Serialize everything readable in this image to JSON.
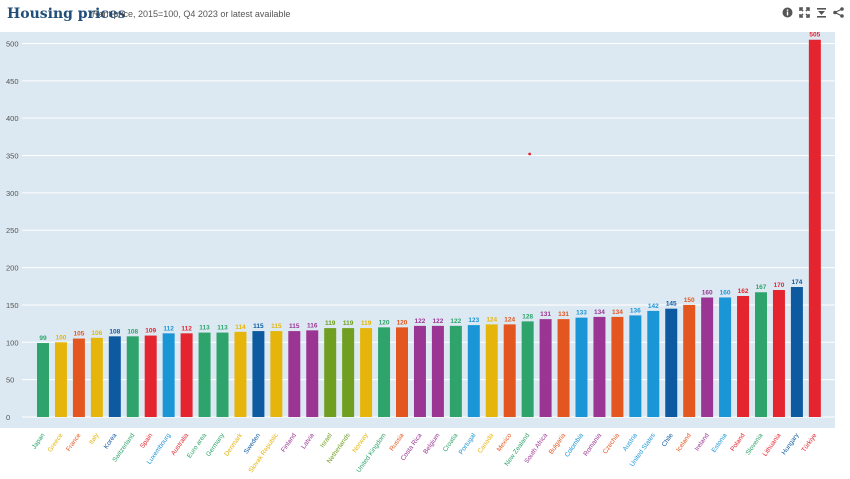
{
  "header": {
    "title": "Housing prices",
    "subtitle": "Rent price, 2015=100, Q4 2023 or latest available"
  },
  "tools": [
    {
      "name": "info-icon"
    },
    {
      "name": "fullscreen-icon"
    },
    {
      "name": "download-icon"
    },
    {
      "name": "share-icon"
    }
  ],
  "colors": {
    "plot_bg": "#dde9f2",
    "grid": "#ffffff",
    "palette": [
      "#2ea36b",
      "#e5b50c",
      "#e4561f",
      "#1a95d6",
      "#0d5aa0",
      "#9b3593",
      "#e4252f",
      "#6f9e21"
    ]
  },
  "chart_data": {
    "type": "bar",
    "title": "Housing prices",
    "subtitle": "Rent price, 2015=100, Q4 2023 or latest available",
    "ylim": [
      0,
      510
    ],
    "yticks": [
      0,
      50,
      100,
      150,
      200,
      250,
      300,
      350,
      400,
      450,
      500
    ],
    "grid": true,
    "legend": "none",
    "categories": [
      "Japan",
      "Greece",
      "France",
      "Italy",
      "Korea",
      "Switzerland",
      "Spain",
      "Luxembourg",
      "Australia",
      "Euro area",
      "Germany",
      "Denmark",
      "Sweden",
      "Slovak Republic",
      "Finland",
      "Latvia",
      "Israel",
      "Netherlands",
      "Norway",
      "United Kingdom",
      "Russia",
      "Costa Rica",
      "Belgium",
      "Croatia",
      "Portugal",
      "Canada",
      "Mexico",
      "New Zealand",
      "South Africa",
      "Bulgaria",
      "Colombia",
      "Romania",
      "Czechia",
      "Austria",
      "United States",
      "Chile",
      "Iceland",
      "Ireland",
      "Estonia",
      "Poland",
      "Slovenia",
      "Lithuania",
      "Hungary",
      "Türkiye"
    ],
    "values": [
      99,
      100,
      105,
      106,
      108,
      108,
      109,
      112,
      112,
      113,
      113,
      114,
      115,
      115,
      115,
      116,
      119,
      119,
      119,
      120,
      120,
      122,
      122,
      122,
      123,
      124,
      124,
      128,
      131,
      131,
      133,
      134,
      134,
      136,
      142,
      145,
      150,
      160,
      160,
      162,
      167,
      170,
      174,
      505
    ],
    "color_index": [
      0,
      1,
      2,
      1,
      4,
      0,
      6,
      3,
      6,
      0,
      0,
      1,
      4,
      1,
      5,
      5,
      7,
      7,
      1,
      0,
      2,
      5,
      5,
      0,
      3,
      1,
      2,
      0,
      5,
      2,
      3,
      5,
      2,
      3,
      3,
      4,
      2,
      5,
      3,
      6,
      0,
      6,
      4,
      6
    ],
    "annotation_point": {
      "category_index": 27,
      "value": 352
    }
  }
}
